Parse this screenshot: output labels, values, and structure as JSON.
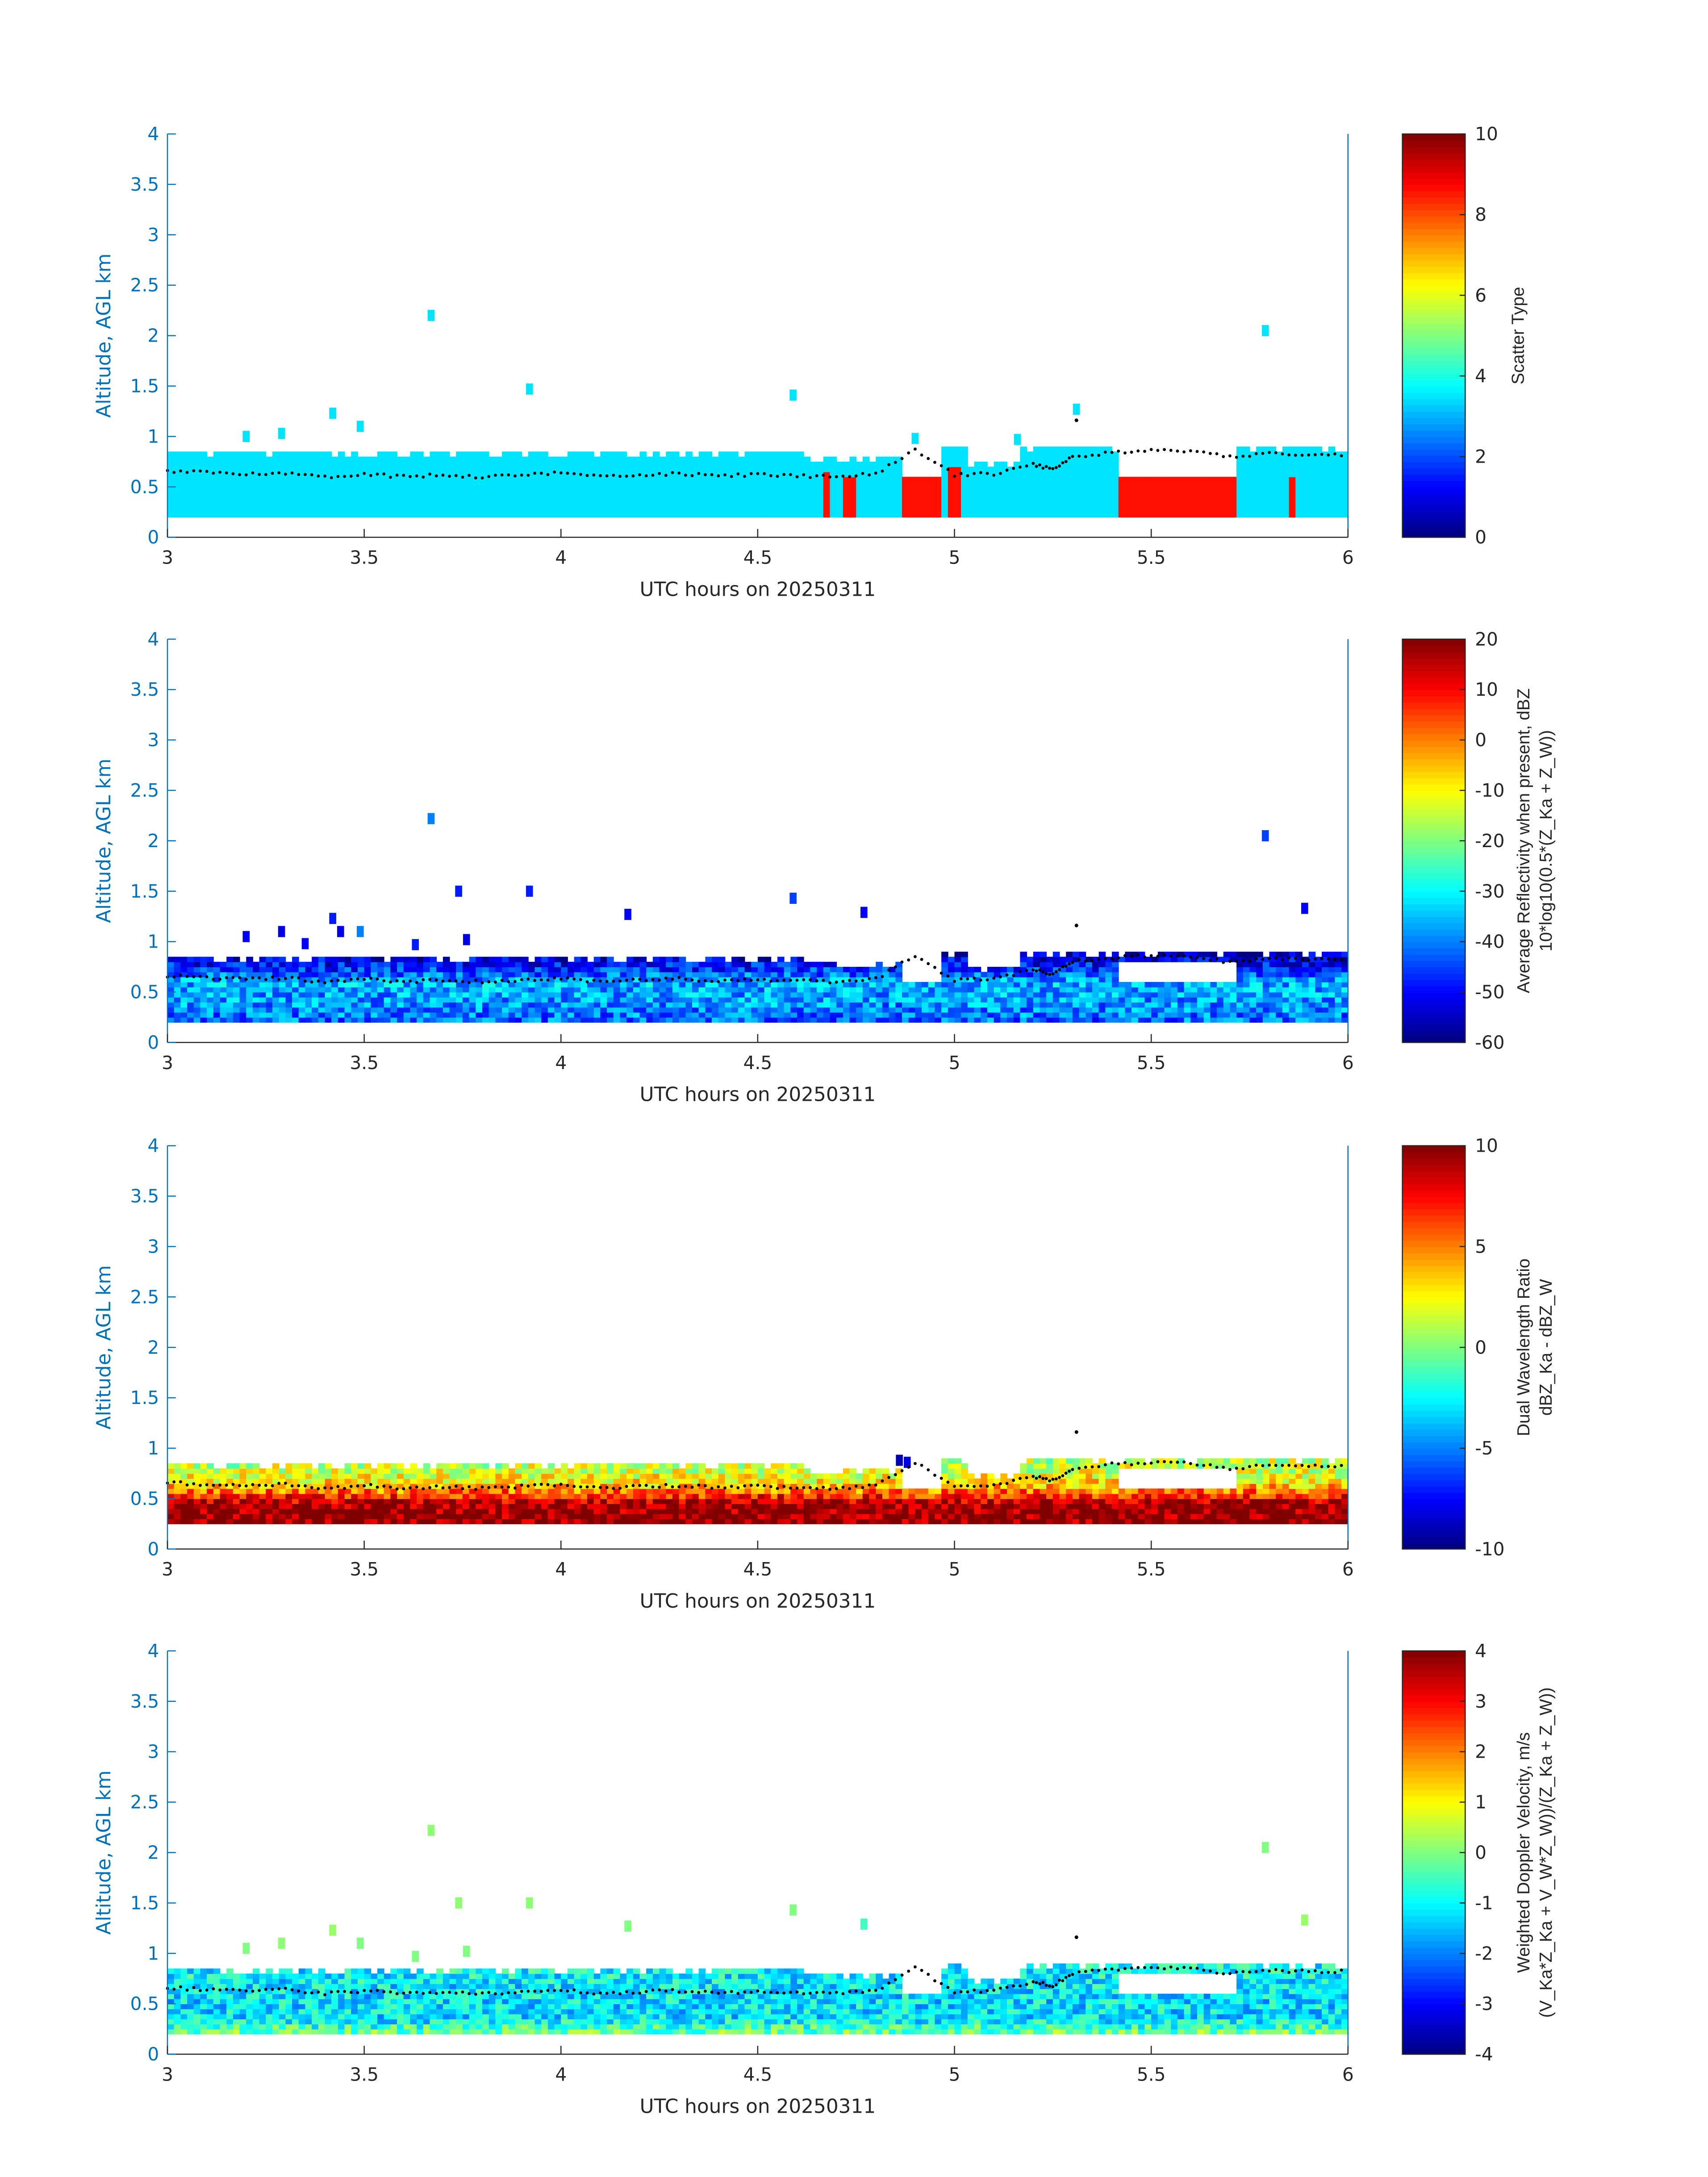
{
  "chart_data": [
    {
      "type": "heatmap",
      "title": "",
      "xlabel": "UTC hours on 20250311",
      "ylabel": "Altitude, AGL km",
      "xlim": [
        3,
        6
      ],
      "ylim": [
        0,
        4
      ],
      "xticks": [
        "3",
        "3.5",
        "4",
        "4.5",
        "5",
        "5.5",
        "6"
      ],
      "yticks": [
        "0",
        "0.5",
        "1",
        "1.5",
        "2",
        "2.5",
        "3",
        "3.5",
        "4"
      ],
      "colorbar": {
        "label": [
          "Scatter Type"
        ],
        "range": [
          0,
          10
        ],
        "ticks": [
          "0",
          "2",
          "4",
          "6",
          "8",
          "10"
        ]
      },
      "layer_base_km": 0.2,
      "background_value": 3.5,
      "noise": 0,
      "high_value_segments": [
        [
          4.66,
          4.69,
          0.65,
          8.6
        ],
        [
          4.72,
          4.75,
          0.62,
          8.6
        ],
        [
          4.87,
          4.97,
          0.6,
          8.6
        ],
        [
          4.98,
          5.02,
          0.72,
          8.6
        ],
        [
          5.42,
          5.72,
          0.58,
          8.6
        ],
        [
          5.85,
          5.87,
          0.58,
          8.6
        ]
      ],
      "isolated_cells": [
        [
          3.2,
          1.0,
          3.5
        ],
        [
          3.29,
          1.03,
          3.5
        ],
        [
          3.42,
          1.23,
          3.5
        ],
        [
          3.49,
          1.1,
          3.5
        ],
        [
          3.67,
          2.2,
          3.5
        ],
        [
          3.92,
          1.47,
          3.5
        ],
        [
          4.59,
          1.41,
          3.5
        ],
        [
          4.9,
          0.98,
          3.5
        ],
        [
          5.16,
          0.97,
          3.5
        ],
        [
          5.31,
          1.27,
          3.5
        ],
        [
          5.79,
          2.05,
          3.5
        ]
      ]
    },
    {
      "type": "heatmap",
      "xlabel": "UTC hours on 20250311",
      "ylabel": "Altitude, AGL km",
      "xlim": [
        3,
        6
      ],
      "ylim": [
        0,
        4
      ],
      "xticks": [
        "3",
        "3.5",
        "4",
        "4.5",
        "5",
        "5.5",
        "6"
      ],
      "yticks": [
        "0",
        "0.5",
        "1",
        "1.5",
        "2",
        "2.5",
        "3",
        "3.5",
        "4"
      ],
      "colorbar": {
        "label": [
          "Average Reflectivity when present, dBZ",
          "10*log10(0.5*(Z_Ka + Z_W))"
        ],
        "range": [
          -60,
          20
        ],
        "ticks": [
          "-60",
          "-50",
          "-40",
          "-30",
          "-20",
          "-10",
          "0",
          "10",
          "20"
        ]
      },
      "layer_base_km": 0.2,
      "profile": [
        [
          0.2,
          -42
        ],
        [
          0.4,
          -38
        ],
        [
          0.6,
          -36
        ],
        [
          0.75,
          -48
        ],
        [
          0.9,
          -56
        ]
      ],
      "noise": 9,
      "isolated_cells": [
        [
          3.2,
          1.05,
          -50
        ],
        [
          3.29,
          1.1,
          -52
        ],
        [
          3.35,
          0.98,
          -50
        ],
        [
          3.42,
          1.23,
          -48
        ],
        [
          3.44,
          1.1,
          -52
        ],
        [
          3.49,
          1.1,
          -40
        ],
        [
          3.63,
          0.97,
          -48
        ],
        [
          3.67,
          2.22,
          -40
        ],
        [
          3.74,
          1.5,
          -48
        ],
        [
          3.76,
          1.02,
          -52
        ],
        [
          3.92,
          1.5,
          -48
        ],
        [
          4.17,
          1.27,
          -50
        ],
        [
          4.59,
          1.43,
          -45
        ],
        [
          4.77,
          1.29,
          -50
        ],
        [
          5.79,
          2.05,
          -45
        ],
        [
          5.89,
          1.33,
          -50
        ]
      ]
    },
    {
      "type": "heatmap",
      "xlabel": "UTC hours on 20250311",
      "ylabel": "Altitude, AGL km",
      "xlim": [
        3,
        6
      ],
      "ylim": [
        0,
        4
      ],
      "xticks": [
        "3",
        "3.5",
        "4",
        "4.5",
        "5",
        "5.5",
        "6"
      ],
      "yticks": [
        "0",
        "0.5",
        "1",
        "1.5",
        "2",
        "2.5",
        "3",
        "3.5",
        "4"
      ],
      "colorbar": {
        "label": [
          "Dual Wavelength Ratio",
          "dBZ_Ka - dBZ_W"
        ],
        "range": [
          -10,
          10
        ],
        "ticks": [
          "-10",
          "-5",
          "0",
          "5",
          "10"
        ]
      },
      "layer_base_km": 0.25,
      "profile": [
        [
          0.25,
          10
        ],
        [
          0.45,
          9.5
        ],
        [
          0.55,
          6
        ],
        [
          0.65,
          3
        ],
        [
          0.8,
          1.5
        ],
        [
          0.9,
          1
        ]
      ],
      "noise": 2.5,
      "isolated_cells": [
        [
          4.86,
          0.88,
          -9
        ],
        [
          4.88,
          0.86,
          -8
        ]
      ]
    },
    {
      "type": "heatmap",
      "xlabel": "UTC hours on 20250311",
      "ylabel": "Altitude, AGL km",
      "xlim": [
        3,
        6
      ],
      "ylim": [
        0,
        4
      ],
      "xticks": [
        "3",
        "3.5",
        "4",
        "4.5",
        "5",
        "5.5",
        "6"
      ],
      "yticks": [
        "0",
        "0.5",
        "1",
        "1.5",
        "2",
        "2.5",
        "3",
        "3.5",
        "4"
      ],
      "colorbar": {
        "label": [
          "Weighted Doppler Velocity, m/s",
          "(V_Ka*Z_Ka + V_W*Z_W))/(Z_Ka + Z_W))"
        ],
        "range": [
          -4,
          4
        ],
        "ticks": [
          "-4",
          "-3",
          "-2",
          "-1",
          "0",
          "1",
          "2",
          "3",
          "4"
        ]
      },
      "layer_base_km": 0.2,
      "profile": [
        [
          0.2,
          0.0
        ],
        [
          0.35,
          -1.2
        ],
        [
          0.6,
          -1.2
        ],
        [
          0.8,
          -1.0
        ],
        [
          0.9,
          -1.0
        ]
      ],
      "noise": 0.9,
      "isolated_cells": [
        [
          3.2,
          1.05,
          0
        ],
        [
          3.29,
          1.1,
          0.1
        ],
        [
          3.42,
          1.23,
          0.2
        ],
        [
          3.49,
          1.1,
          0
        ],
        [
          3.63,
          0.97,
          0
        ],
        [
          3.67,
          2.22,
          0.1
        ],
        [
          3.74,
          1.5,
          0.1
        ],
        [
          3.76,
          1.02,
          0
        ],
        [
          3.92,
          1.5,
          0.1
        ],
        [
          4.17,
          1.27,
          0
        ],
        [
          4.59,
          1.43,
          0
        ],
        [
          4.77,
          1.29,
          -0.5
        ],
        [
          5.79,
          2.05,
          0
        ],
        [
          5.89,
          1.33,
          0.2
        ]
      ]
    }
  ],
  "shared": {
    "layer_top_km": [
      [
        3,
        0.82
      ],
      [
        4.6,
        0.78
      ],
      [
        4.85,
        0.9
      ],
      [
        5.02,
        0.72
      ],
      [
        5.15,
        0.9
      ],
      [
        6,
        0.92
      ]
    ],
    "gaps": [
      [
        4.86,
        4.97,
        0.62,
        0.9
      ],
      [
        5.42,
        5.72,
        0.58,
        0.8
      ]
    ],
    "marker_series": {
      "name": "black dots",
      "x": [
        3,
        3.1,
        3.2,
        3.3,
        3.4,
        3.5,
        3.6,
        3.7,
        3.8,
        3.9,
        4,
        4.1,
        4.2,
        4.3,
        4.4,
        4.5,
        4.6,
        4.7,
        4.8,
        4.9,
        5,
        5.1,
        5.2,
        5.25,
        5.3,
        5.4,
        5.5,
        5.6,
        5.7,
        5.8,
        5.9,
        6
      ],
      "y": [
        0.66,
        0.64,
        0.63,
        0.64,
        0.6,
        0.63,
        0.6,
        0.62,
        0.6,
        0.62,
        0.64,
        0.6,
        0.62,
        0.63,
        0.61,
        0.62,
        0.61,
        0.6,
        0.63,
        0.86,
        0.62,
        0.63,
        0.72,
        0.68,
        0.8,
        0.84,
        0.86,
        0.85,
        0.8,
        0.83,
        0.82,
        0.82
      ]
    }
  }
}
